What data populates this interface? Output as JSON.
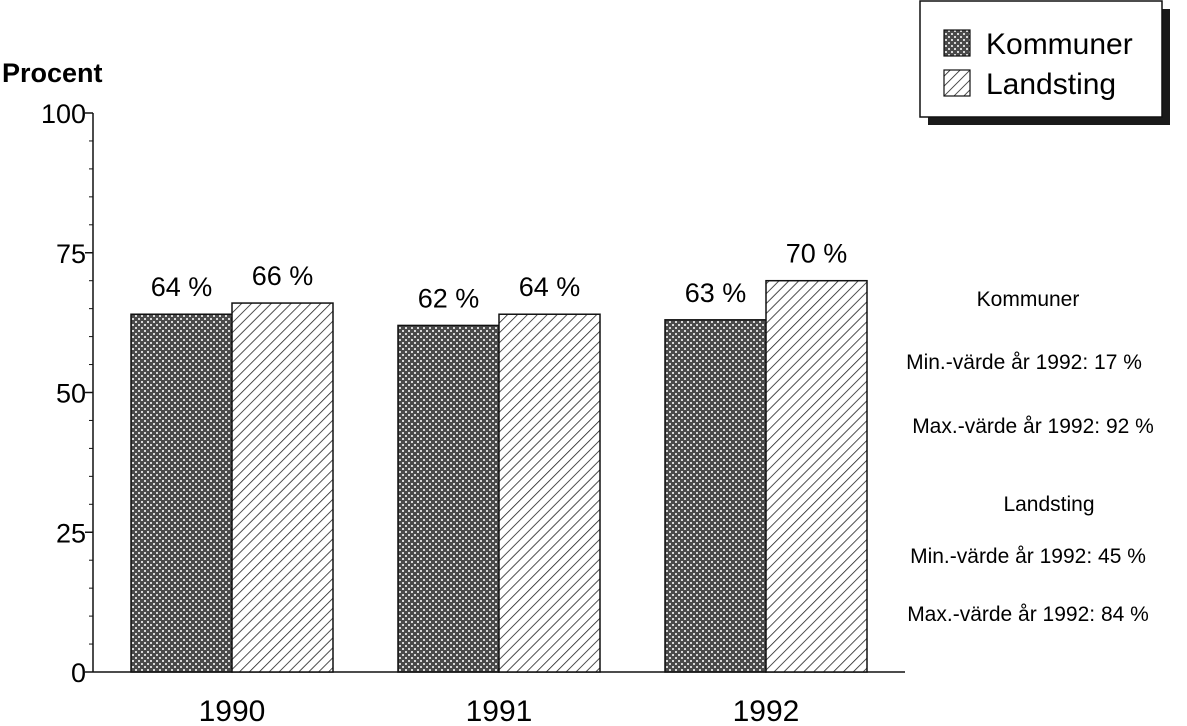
{
  "chart_data": {
    "type": "bar",
    "ylabel": "Procent",
    "ylim": [
      0,
      100
    ],
    "yticks": [
      0,
      25,
      50,
      75,
      100
    ],
    "categories": [
      "1990",
      "1991",
      "1992"
    ],
    "series": [
      {
        "name": "Kommuner",
        "values": [
          64,
          62,
          63
        ],
        "labels": [
          "64 %",
          "62 %",
          "63 %"
        ],
        "pattern": "crosshatch-dark"
      },
      {
        "name": "Landsting",
        "values": [
          66,
          64,
          70
        ],
        "labels": [
          "66 %",
          "64 %",
          "70 %"
        ],
        "pattern": "diagonal-lines"
      }
    ],
    "legend_position": "top-right",
    "grid": false,
    "annotations": {
      "kommuner": {
        "heading": "Kommuner",
        "min": "Min.-värde år 1992: 17 %",
        "max": "Max.-värde år 1992: 92 %"
      },
      "landsting": {
        "heading": "Landsting",
        "min": "Min.-värde år 1992: 45 %",
        "max": "Max.-värde år 1992: 84 %"
      }
    }
  }
}
